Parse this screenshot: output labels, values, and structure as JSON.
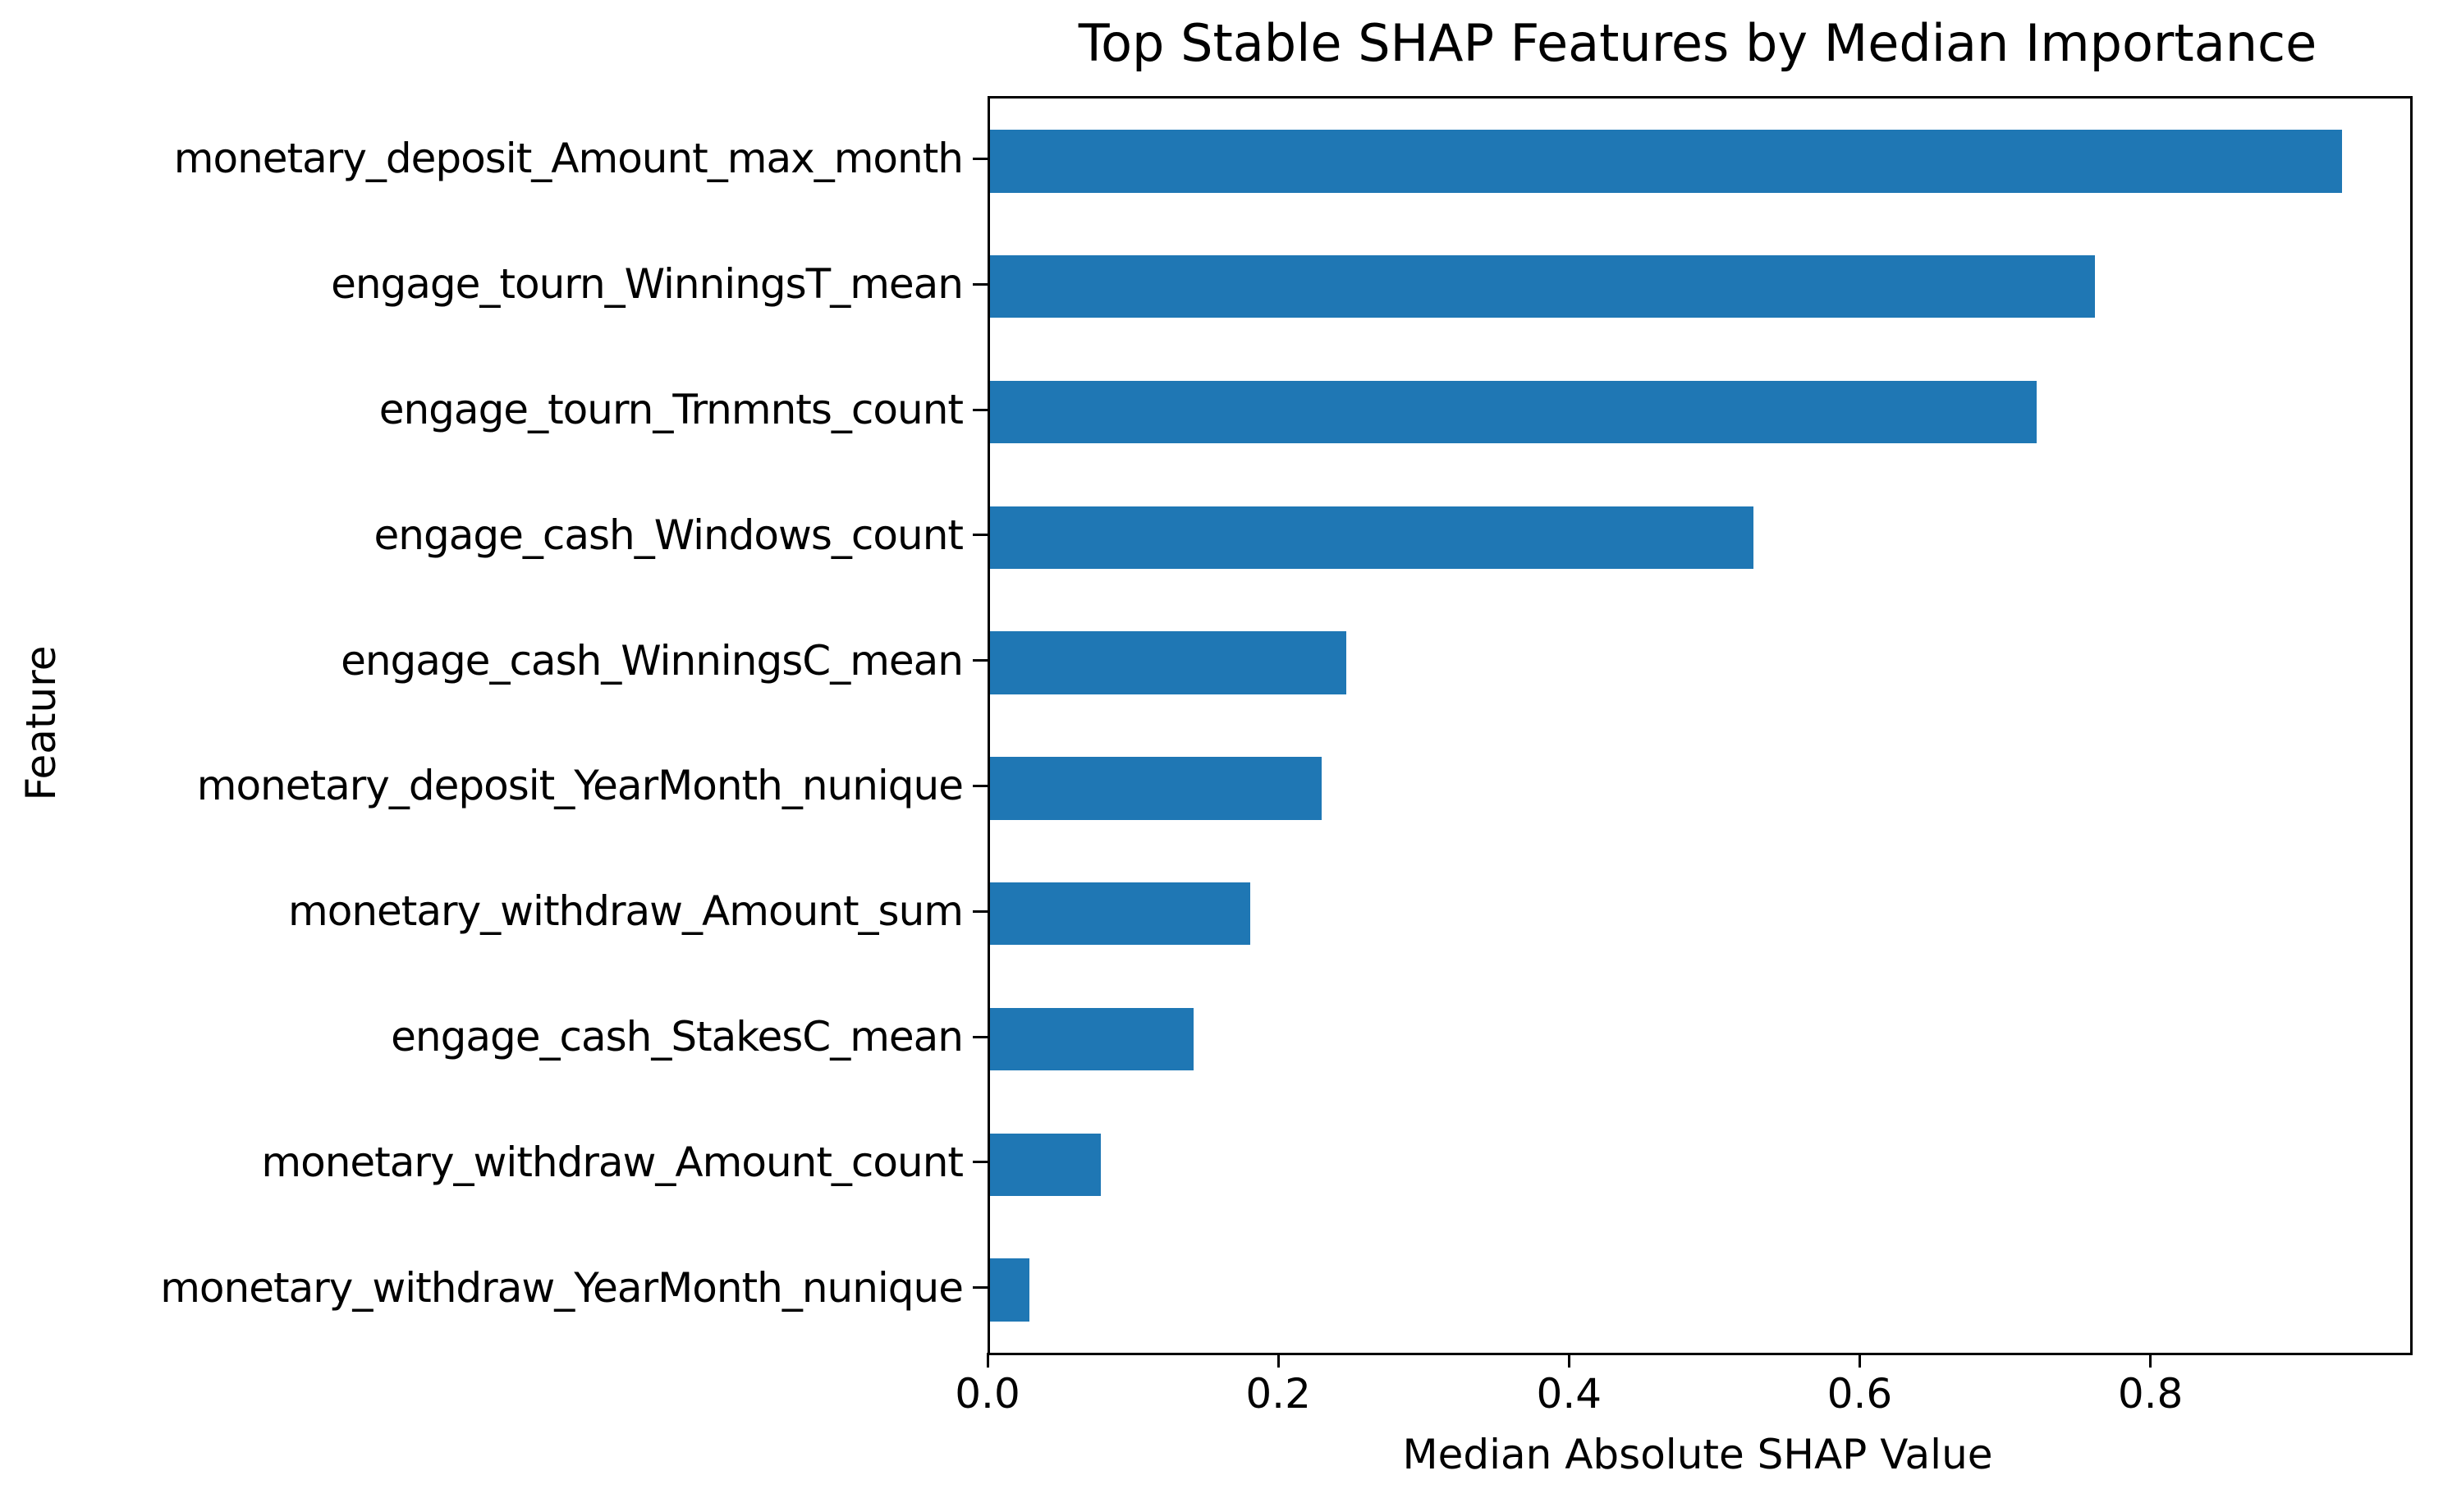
{
  "chart_data": {
    "type": "bar",
    "orientation": "horizontal",
    "title": "Top Stable SHAP Features by Median Importance",
    "xlabel": "Median Absolute SHAP Value",
    "ylabel": "Feature",
    "categories": [
      "monetary_deposit_Amount_max_month",
      "engage_tourn_WinningsT_mean",
      "engage_tourn_Trnmnts_count",
      "engage_cash_Windows_count",
      "engage_cash_WinningsC_mean",
      "monetary_deposit_YearMonth_nunique",
      "monetary_withdraw_Amount_sum",
      "engage_cash_StakesC_mean",
      "monetary_withdraw_Amount_count",
      "monetary_withdraw_YearMonth_nunique"
    ],
    "values": [
      0.93,
      0.76,
      0.72,
      0.525,
      0.245,
      0.228,
      0.179,
      0.14,
      0.076,
      0.027
    ],
    "xticks": [
      0.0,
      0.2,
      0.4,
      0.6,
      0.8
    ],
    "xtick_labels": [
      "0.0",
      "0.2",
      "0.4",
      "0.6",
      "0.8"
    ],
    "xlim": [
      0,
      0.977
    ],
    "bar_color": "#1f77b4",
    "bar_width_fraction": 0.5,
    "grid": false,
    "legend": null,
    "spine_color": "#000000",
    "background_color": "#ffffff"
  }
}
